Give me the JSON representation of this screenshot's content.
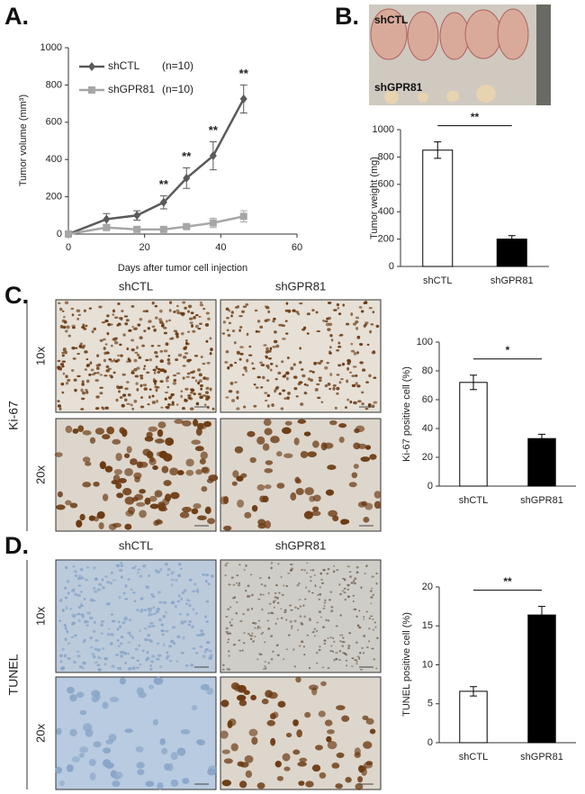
{
  "chart_data": [
    {
      "type": "line",
      "panel_label": "A.",
      "x_label": "Days after tumor cell injection",
      "y_label": "Tumor volume (mm³)",
      "x": [
        0,
        10,
        18,
        25,
        31,
        38,
        46
      ],
      "series": [
        {
          "name": "shCTL",
          "n_label": "(n=10)",
          "color": "#5a5a5a",
          "marker": "diamond",
          "values": [
            0,
            80,
            100,
            170,
            300,
            420,
            725
          ],
          "errors": [
            0,
            30,
            25,
            35,
            55,
            75,
            75
          ]
        },
        {
          "name": "shGPR81",
          "n_label": "(n=10)",
          "color": "#a6a6a6",
          "marker": "square",
          "values": [
            0,
            35,
            25,
            25,
            40,
            60,
            95
          ],
          "errors": [
            0,
            10,
            10,
            10,
            10,
            25,
            30
          ]
        }
      ],
      "annotations": [
        {
          "x": 25,
          "text": "**"
        },
        {
          "x": 31,
          "text": "**"
        },
        {
          "x": 38,
          "text": "**"
        },
        {
          "x": 46,
          "text": "**"
        }
      ],
      "xlim": [
        0,
        60
      ],
      "xticks": [
        0,
        20,
        40,
        60
      ],
      "ylim": [
        0,
        1000
      ],
      "yticks": [
        0,
        200,
        400,
        600,
        800,
        1000
      ]
    },
    {
      "type": "bar",
      "panel_label": "B.",
      "photo_labels": [
        "shCTL",
        "shGPR81"
      ],
      "y_label": "Tumor weight (mg)",
      "categories": [
        "shCTL",
        "shGPR81"
      ],
      "values": [
        850,
        200
      ],
      "errors": [
        60,
        25
      ],
      "colors": [
        "#ffffff",
        "#000000"
      ],
      "significance": "**",
      "ylim": [
        0,
        1000
      ],
      "yticks": [
        0,
        200,
        400,
        600,
        800,
        1000
      ]
    },
    {
      "type": "bar",
      "panel_label": "C.",
      "micrograph": {
        "columns": [
          "shCTL",
          "shGPR81"
        ],
        "rows": [
          "10x",
          "20x"
        ],
        "stain": "Ki-67"
      },
      "y_label": "Ki-67 positive cell (%)",
      "categories": [
        "shCTL",
        "shGPR81"
      ],
      "values": [
        72,
        33
      ],
      "errors": [
        5,
        3
      ],
      "colors": [
        "#ffffff",
        "#000000"
      ],
      "significance": "*",
      "ylim": [
        0,
        100
      ],
      "yticks": [
        0,
        20,
        40,
        60,
        80,
        100
      ]
    },
    {
      "type": "bar",
      "panel_label": "D.",
      "micrograph": {
        "columns": [
          "shCTL",
          "shGPR81"
        ],
        "rows": [
          "10x",
          "20x"
        ],
        "stain": "TUNEL"
      },
      "y_label": "TUNEL positive cell (%)",
      "categories": [
        "shCTL",
        "shGPR81"
      ],
      "values": [
        6.6,
        16.4
      ],
      "errors": [
        0.6,
        1.1
      ],
      "colors": [
        "#ffffff",
        "#000000"
      ],
      "significance": "**",
      "ylim": [
        0,
        20
      ],
      "yticks": [
        0,
        5,
        10,
        15,
        20
      ]
    }
  ]
}
